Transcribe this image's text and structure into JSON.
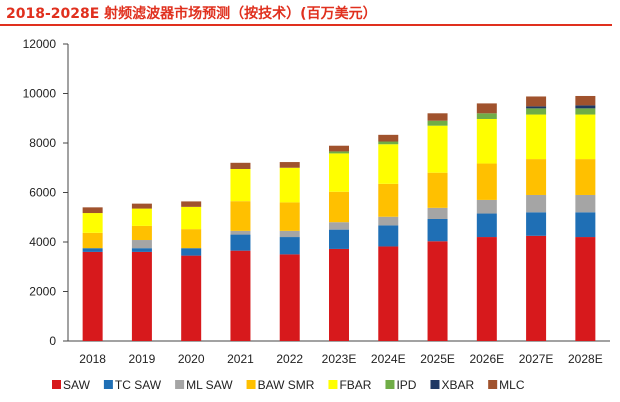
{
  "title": "2018-2028E 射频滤波器市场预测（按技术）(百万美元）",
  "chart_data": {
    "type": "bar",
    "stacked": true,
    "title": "2018-2028E 射频滤波器市场预测（按技术）(百万美元）",
    "xlabel": "",
    "ylabel": "",
    "ylim": [
      0,
      12000
    ],
    "yticks": [
      0,
      2000,
      4000,
      6000,
      8000,
      10000,
      12000
    ],
    "grid": false,
    "legend_position": "bottom",
    "categories": [
      "2018",
      "2019",
      "2020",
      "2021",
      "2022",
      "2023E",
      "2024E",
      "2025E",
      "2026E",
      "2027E",
      "2028E"
    ],
    "series": [
      {
        "name": "SAW",
        "color": "#d7191c",
        "values": [
          3600,
          3600,
          3450,
          3650,
          3500,
          3720,
          3820,
          4030,
          4200,
          4250,
          4200
        ]
      },
      {
        "name": "TC SAW",
        "color": "#1f6fb5",
        "values": [
          150,
          150,
          300,
          650,
          700,
          780,
          850,
          900,
          950,
          950,
          1000
        ]
      },
      {
        "name": "ML SAW",
        "color": "#a5a5a5",
        "values": [
          0,
          330,
          0,
          150,
          250,
          300,
          350,
          450,
          550,
          700,
          700
        ]
      },
      {
        "name": "BAW SMR",
        "color": "#ffc000",
        "values": [
          620,
          570,
          770,
          1200,
          1150,
          1230,
          1330,
          1420,
          1470,
          1450,
          1450
        ]
      },
      {
        "name": "FBAR",
        "color": "#ffff00",
        "values": [
          800,
          700,
          900,
          1300,
          1400,
          1550,
          1600,
          1900,
          1800,
          1800,
          1800
        ]
      },
      {
        "name": "IPD",
        "color": "#70ad47",
        "values": [
          0,
          0,
          0,
          0,
          0,
          80,
          110,
          200,
          230,
          250,
          250
        ]
      },
      {
        "name": "XBAR",
        "color": "#1f3864",
        "values": [
          0,
          0,
          0,
          0,
          0,
          0,
          0,
          0,
          0,
          80,
          120
        ]
      },
      {
        "name": "MLC",
        "color": "#a0522d",
        "values": [
          230,
          200,
          220,
          250,
          230,
          230,
          270,
          300,
          400,
          400,
          380
        ]
      }
    ]
  }
}
